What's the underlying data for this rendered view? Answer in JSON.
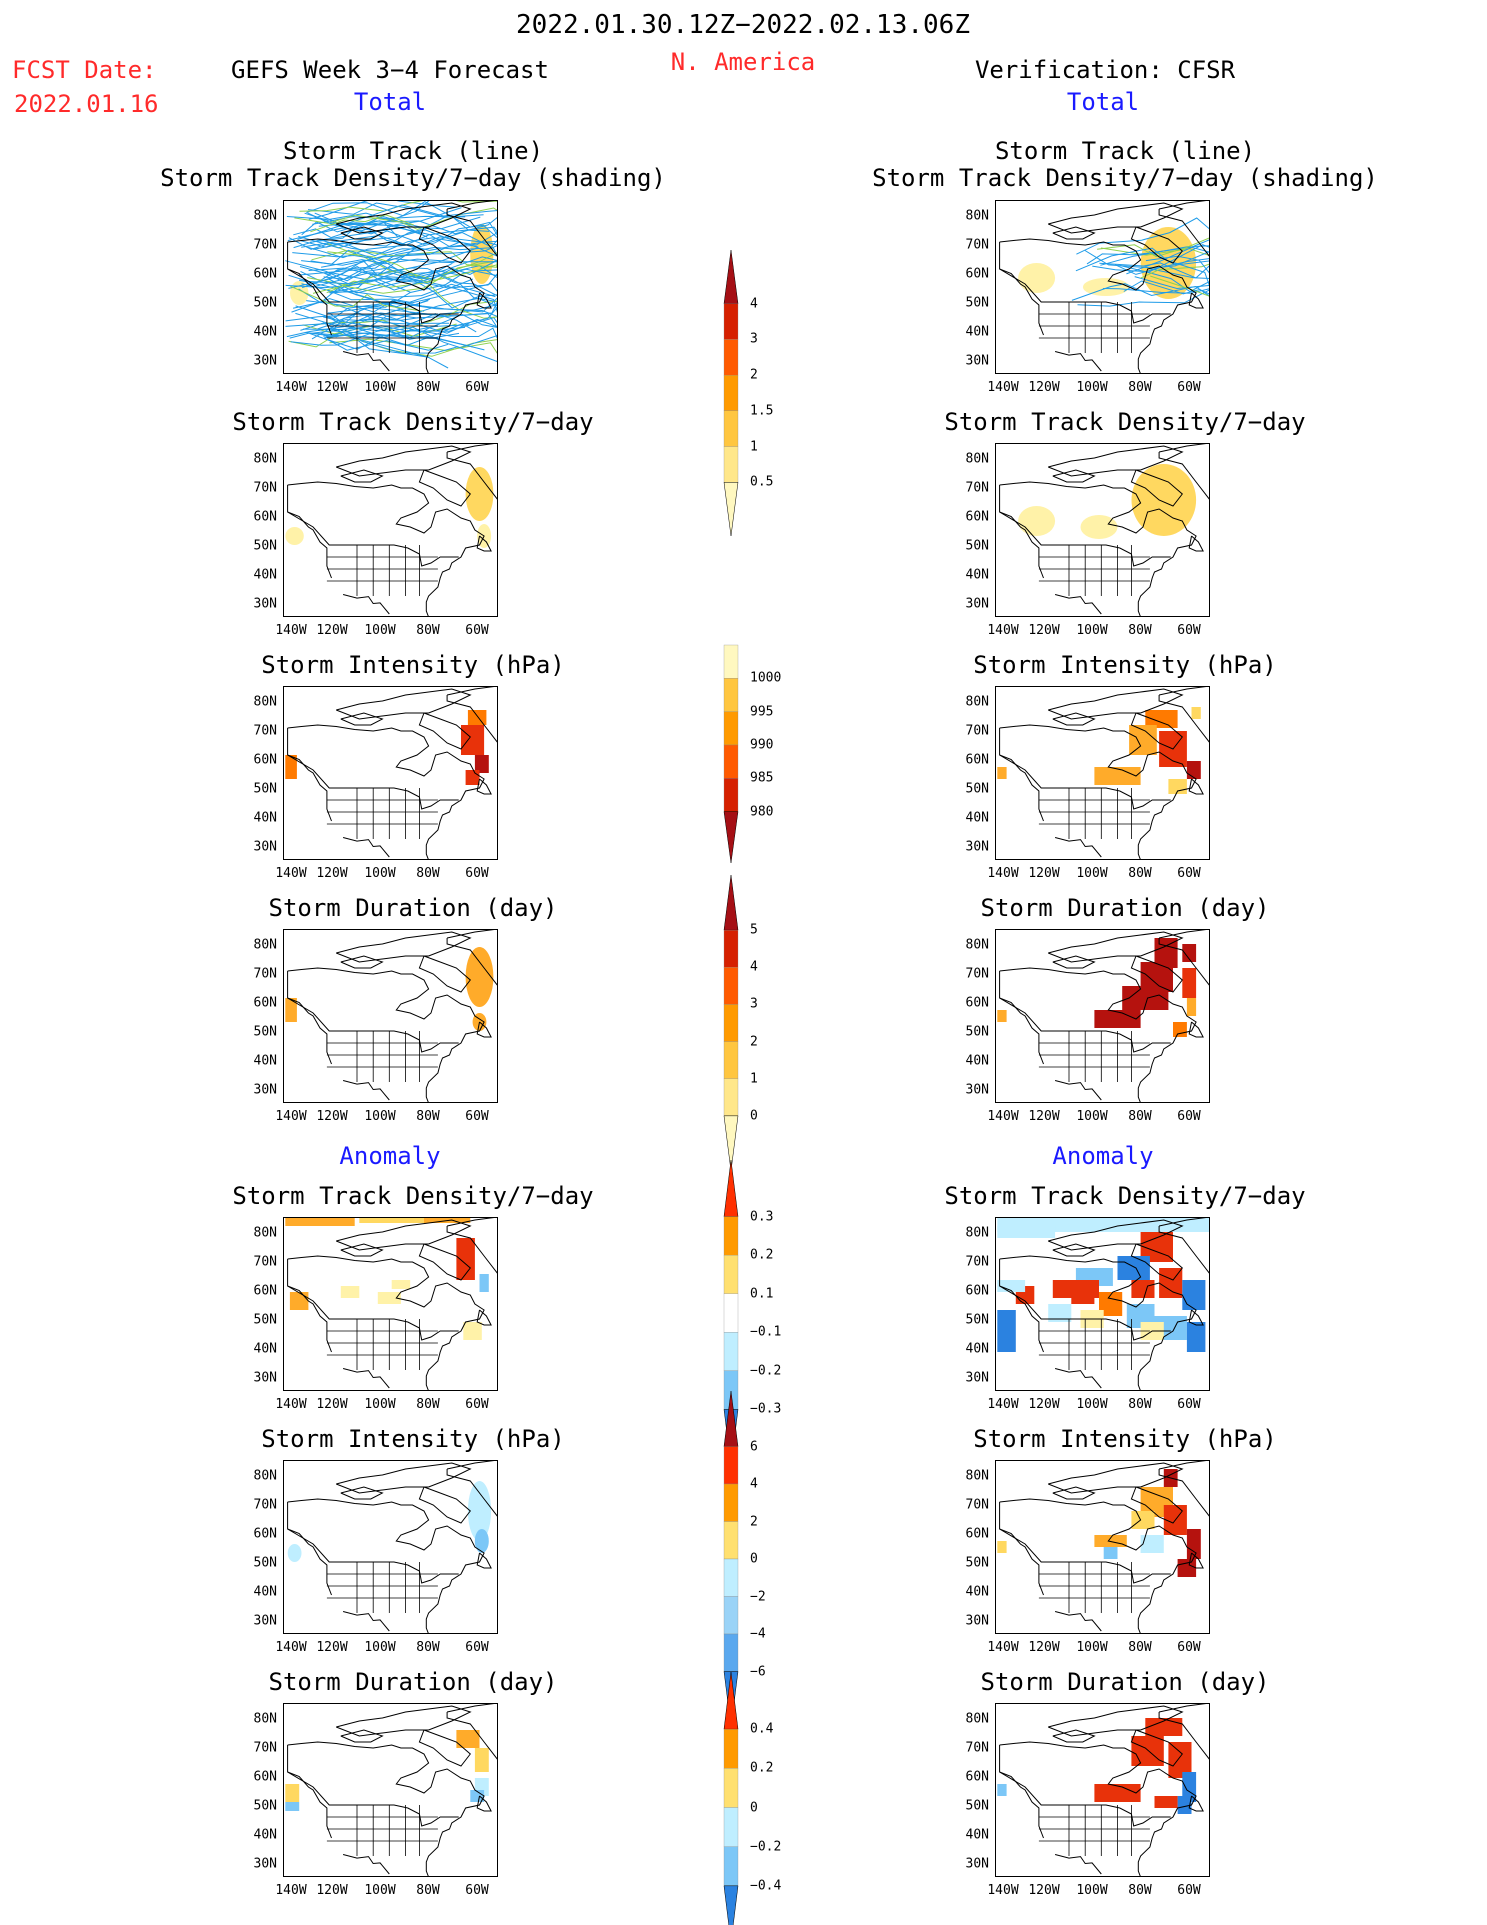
{
  "header": {
    "period": "2022.01.30.12Z−2022.02.13.06Z",
    "fcst_label": "FCST Date:",
    "fcst_date": "2022.01.16",
    "forecast_title": "GEFS Week 3−4 Forecast",
    "region": "N. America",
    "verification_title": "Verification: CFSR",
    "total_label_left": "Total",
    "total_label_right": "Total",
    "anomaly_label_left": "Anomaly",
    "anomaly_label_right": "Anomaly"
  },
  "axes": {
    "lat_labels": [
      "80N",
      "70N",
      "60N",
      "50N",
      "40N",
      "30N"
    ],
    "lon_labels": [
      "140W",
      "120W",
      "100W",
      "80W",
      "60W"
    ]
  },
  "panel_titles": {
    "track_line": "Storm Track (line)\nStorm Track Density/7−day (shading)",
    "density": "Storm Track Density/7−day",
    "intensity": "Storm Intensity (hPa)",
    "duration": "Storm Duration (day)"
  },
  "colorbars": {
    "density_total": {
      "labels": [
        "4",
        "3",
        "2",
        "1.5",
        "1",
        "0.5"
      ],
      "colors": [
        "#a50f15",
        "#d62000",
        "#ff5a00",
        "#ff9a00",
        "#ffc640",
        "#ffe78a",
        "#fff8c0"
      ]
    },
    "intensity_total": {
      "labels": [
        "1000",
        "995",
        "990",
        "985",
        "980"
      ],
      "colors": [
        "#fff8c0",
        "#ffc640",
        "#ff9a00",
        "#ff5a00",
        "#d62000",
        "#a50f15"
      ]
    },
    "duration_total": {
      "labels": [
        "5",
        "4",
        "3",
        "2",
        "1",
        "0"
      ],
      "colors": [
        "#a50f15",
        "#d62000",
        "#ff5a00",
        "#ff9a00",
        "#ffc640",
        "#ffe78a",
        "#fff8c0"
      ]
    },
    "density_anom": {
      "labels": [
        "0.3",
        "0.2",
        "0.1",
        "−0.1",
        "−0.2",
        "−0.3"
      ],
      "colors": [
        "#ff3000",
        "#ff9a00",
        "#ffe070",
        "#ffffff",
        "#bfeeff",
        "#7cc7f7",
        "#2b82e0"
      ]
    },
    "intensity_anom": {
      "labels": [
        "6",
        "4",
        "2",
        "0",
        "−2",
        "−4",
        "−6"
      ],
      "colors": [
        "#a50f15",
        "#ff3000",
        "#ff9a00",
        "#ffe070",
        "#bfeeff",
        "#9ad3f7",
        "#5aa8ee",
        "#2b82e0"
      ]
    },
    "duration_anom": {
      "labels": [
        "0.4",
        "0.2",
        "0",
        "−0.2",
        "−0.4"
      ],
      "colors": [
        "#ff3000",
        "#ff9a00",
        "#ffe070",
        "#bfeeff",
        "#7cc7f7",
        "#2b82e0"
      ]
    }
  }
}
